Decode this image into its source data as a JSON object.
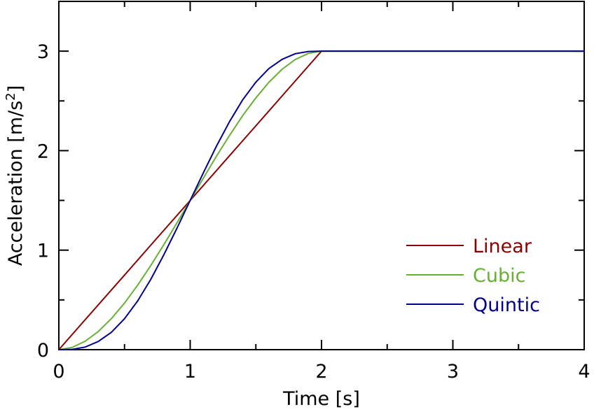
{
  "chart_data": {
    "type": "line",
    "xlabel": "Time [s]",
    "ylabel_main": "Acceleration [m/s",
    "ylabel_sup": "2",
    "ylabel_tail": "]",
    "xlim": [
      0,
      4
    ],
    "ylim": [
      0,
      3.5
    ],
    "xticks": [
      0,
      1,
      2,
      3,
      4
    ],
    "yticks": [
      0,
      1,
      2,
      3
    ],
    "grid": false,
    "legend_position": "bottom-right",
    "series": [
      {
        "name": "Linear",
        "color": "#8b0000",
        "x": [
          0,
          0.25,
          0.5,
          0.75,
          1.0,
          1.25,
          1.5,
          1.75,
          2.0,
          4.0
        ],
        "y": [
          0,
          0.375,
          0.75,
          1.125,
          1.5,
          1.875,
          2.25,
          2.625,
          3.0,
          3.0
        ]
      },
      {
        "name": "Cubic",
        "color": "#66b032",
        "x": [
          0,
          0.1,
          0.2,
          0.3,
          0.4,
          0.5,
          0.6,
          0.7,
          0.8,
          0.9,
          1.0,
          1.1,
          1.2,
          1.3,
          1.4,
          1.5,
          1.6,
          1.7,
          1.8,
          1.9,
          2.0,
          4.0
        ],
        "y": [
          0,
          0.022,
          0.084,
          0.182,
          0.312,
          0.469,
          0.648,
          0.846,
          1.056,
          1.276,
          1.5,
          1.724,
          1.944,
          2.154,
          2.352,
          2.531,
          2.688,
          2.818,
          2.916,
          2.978,
          3.0,
          3.0
        ]
      },
      {
        "name": "Quintic",
        "color": "#00008b",
        "x": [
          0,
          0.1,
          0.2,
          0.3,
          0.4,
          0.5,
          0.6,
          0.7,
          0.8,
          0.9,
          1.0,
          1.1,
          1.2,
          1.3,
          1.4,
          1.5,
          1.6,
          1.7,
          1.8,
          1.9,
          2.0,
          4.0
        ],
        "y": [
          0,
          0.003,
          0.026,
          0.082,
          0.174,
          0.311,
          0.489,
          0.707,
          0.955,
          1.223,
          1.5,
          1.777,
          2.045,
          2.293,
          2.511,
          2.689,
          2.826,
          2.918,
          2.974,
          2.997,
          3.0,
          3.0
        ]
      }
    ]
  }
}
